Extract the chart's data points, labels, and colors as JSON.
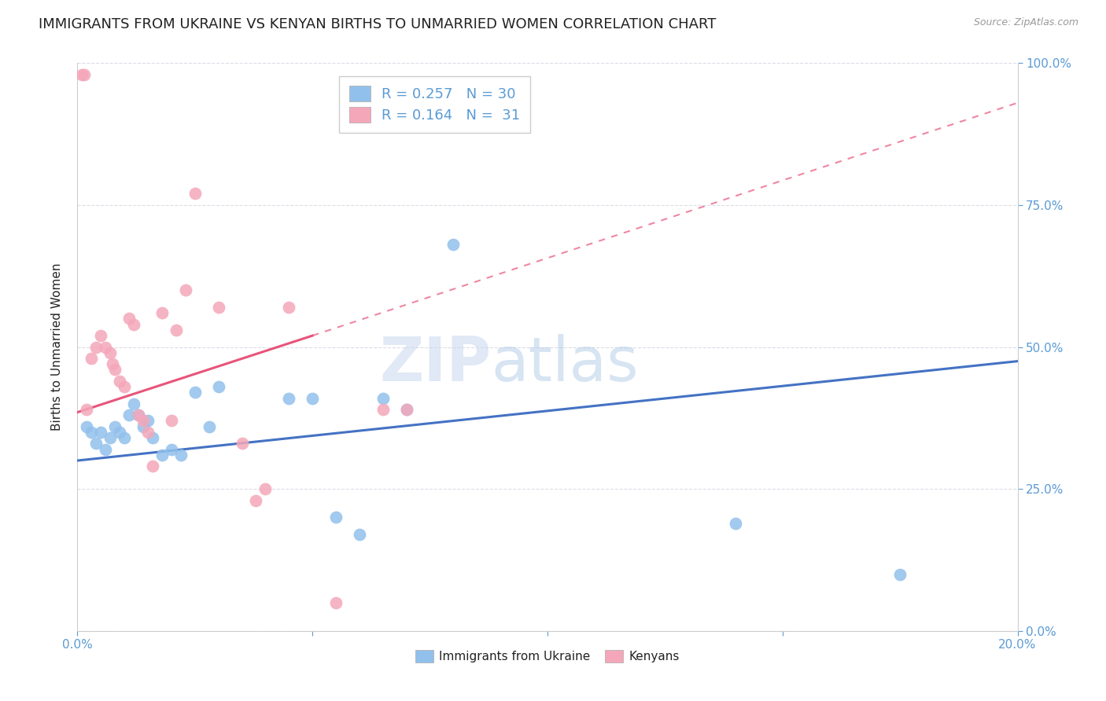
{
  "title": "IMMIGRANTS FROM UKRAINE VS KENYAN BIRTHS TO UNMARRIED WOMEN CORRELATION CHART",
  "source": "Source: ZipAtlas.com",
  "ylabel": "Births to Unmarried Women",
  "xlim": [
    0.0,
    20.0
  ],
  "ylim": [
    0.0,
    100.0
  ],
  "ytick_values": [
    0.0,
    25.0,
    50.0,
    75.0,
    100.0
  ],
  "xtick_values": [
    0.0,
    5.0,
    10.0,
    15.0,
    20.0
  ],
  "xtick_labels": [
    "0.0%",
    "",
    "",
    "",
    "20.0%"
  ],
  "blue_color": "#92C0EC",
  "pink_color": "#F4A7B9",
  "blue_line_color": "#4472C4",
  "pink_line_color": "#E8547A",
  "legend_R_blue": "0.257",
  "legend_N_blue": "30",
  "legend_R_pink": "0.164",
  "legend_N_pink": "31",
  "legend_label_blue": "Immigrants from Ukraine",
  "legend_label_pink": "Kenyans",
  "watermark_zip": "ZIP",
  "watermark_atlas": "atlas",
  "blue_points_x": [
    0.2,
    0.3,
    0.4,
    0.5,
    0.6,
    0.7,
    0.8,
    0.9,
    1.0,
    1.1,
    1.2,
    1.3,
    1.4,
    1.5,
    1.6,
    1.8,
    2.0,
    2.2,
    2.5,
    2.8,
    3.0,
    4.5,
    5.0,
    5.5,
    6.0,
    6.5,
    7.0,
    8.0,
    14.0,
    17.5
  ],
  "blue_points_y": [
    36,
    35,
    33,
    35,
    32,
    34,
    36,
    35,
    34,
    38,
    40,
    38,
    36,
    37,
    34,
    31,
    32,
    31,
    42,
    36,
    43,
    41,
    41,
    20,
    17,
    41,
    39,
    68,
    19,
    10
  ],
  "pink_points_x": [
    0.1,
    0.15,
    0.2,
    0.3,
    0.4,
    0.5,
    0.6,
    0.7,
    0.75,
    0.8,
    0.9,
    1.0,
    1.1,
    1.2,
    1.3,
    1.4,
    1.5,
    1.6,
    1.8,
    2.0,
    2.1,
    2.3,
    2.5,
    3.0,
    3.5,
    3.8,
    4.0,
    4.5,
    5.5,
    6.5,
    7.0
  ],
  "pink_points_y": [
    98,
    98,
    39,
    48,
    50,
    52,
    50,
    49,
    47,
    46,
    44,
    43,
    55,
    54,
    38,
    37,
    35,
    29,
    56,
    37,
    53,
    60,
    77,
    57,
    33,
    23,
    25,
    57,
    5,
    39,
    39
  ],
  "blue_trend_x0": 0.0,
  "blue_trend_y0": 30.0,
  "blue_trend_x1": 20.0,
  "blue_trend_y1": 47.5,
  "pink_trend_x0": 0.0,
  "pink_trend_y0": 38.5,
  "pink_trend_x1": 5.0,
  "pink_trend_y1": 52.0,
  "pink_dash_x0": 5.0,
  "pink_dash_y0": 52.0,
  "pink_dash_x1": 20.0,
  "pink_dash_y1": 93.0,
  "background_color": "#FFFFFF",
  "grid_color": "#DCDCE8",
  "title_fontsize": 13,
  "axis_label_fontsize": 11,
  "tick_color": "#5B9BD5",
  "text_color": "#222222"
}
